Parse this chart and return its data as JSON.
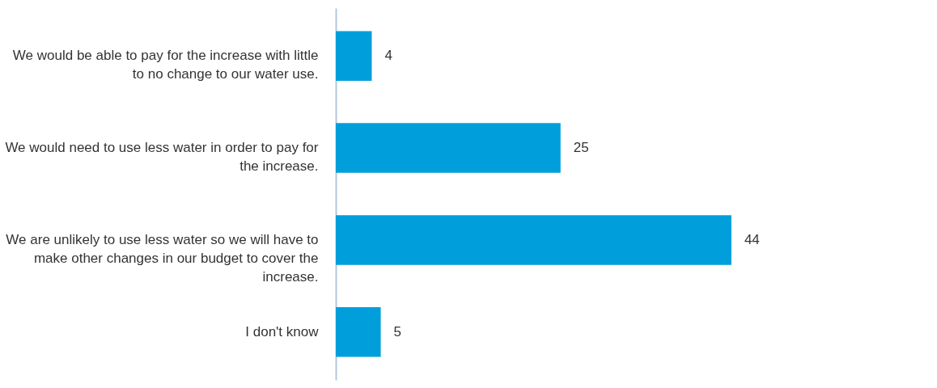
{
  "chart_data": {
    "type": "bar",
    "orientation": "horizontal",
    "categories": [
      "We would be able to pay for the increase with little to no change to our water use.",
      "We would need to use less water in order to pay for the increase.",
      "We are unlikely to use less water so we will have to make other changes in our budget to cover the increase.",
      "I don't know"
    ],
    "values": [
      4,
      25,
      44,
      5
    ],
    "color": "#009fdb",
    "data_labels": true
  }
}
